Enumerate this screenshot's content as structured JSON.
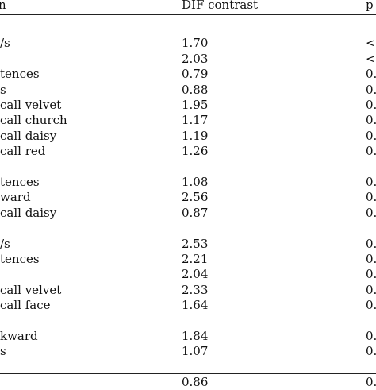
{
  "header": {
    "col1": "n",
    "col2": "DIF contrast",
    "col3": "p"
  },
  "rows": [
    {
      "label": "",
      "dif": "",
      "p": ""
    },
    {
      "label": "/s",
      "dif": "1.70",
      "p": "<0"
    },
    {
      "label": "",
      "dif": "2.03",
      "p": "<0"
    },
    {
      "label": "tences",
      "dif": "0.79",
      "p": "0."
    },
    {
      "label": "s",
      "dif": "0.88",
      "p": "0."
    },
    {
      "label": "call velvet",
      "dif": "1.95",
      "p": "0."
    },
    {
      "label": "call church",
      "dif": "1.17",
      "p": "0."
    },
    {
      "label": "call daisy",
      "dif": "1.19",
      "p": "0."
    },
    {
      "label": "call red",
      "dif": "1.26",
      "p": "0."
    },
    {
      "label": "",
      "dif": "",
      "p": ""
    },
    {
      "label": "tences",
      "dif": "1.08",
      "p": "0."
    },
    {
      "label": "ward",
      "dif": "2.56",
      "p": "0."
    },
    {
      "label": "call daisy",
      "dif": "0.87",
      "p": "0."
    },
    {
      "label": "",
      "dif": "",
      "p": ""
    },
    {
      "label": "/s",
      "dif": "2.53",
      "p": "0."
    },
    {
      "label": "tences",
      "dif": "2.21",
      "p": "0."
    },
    {
      "label": "",
      "dif": "2.04",
      "p": "0."
    },
    {
      "label": "call velvet",
      "dif": "2.33",
      "p": "0."
    },
    {
      "label": "call face",
      "dif": "1.64",
      "p": "0."
    },
    {
      "label": "",
      "dif": "",
      "p": ""
    },
    {
      "label": "kward",
      "dif": "1.84",
      "p": "0."
    },
    {
      "label": "s",
      "dif": "1.07",
      "p": "0."
    },
    {
      "label": "",
      "dif": "",
      "p": ""
    },
    {
      "label": "",
      "dif": "0.86",
      "p": "0."
    }
  ]
}
